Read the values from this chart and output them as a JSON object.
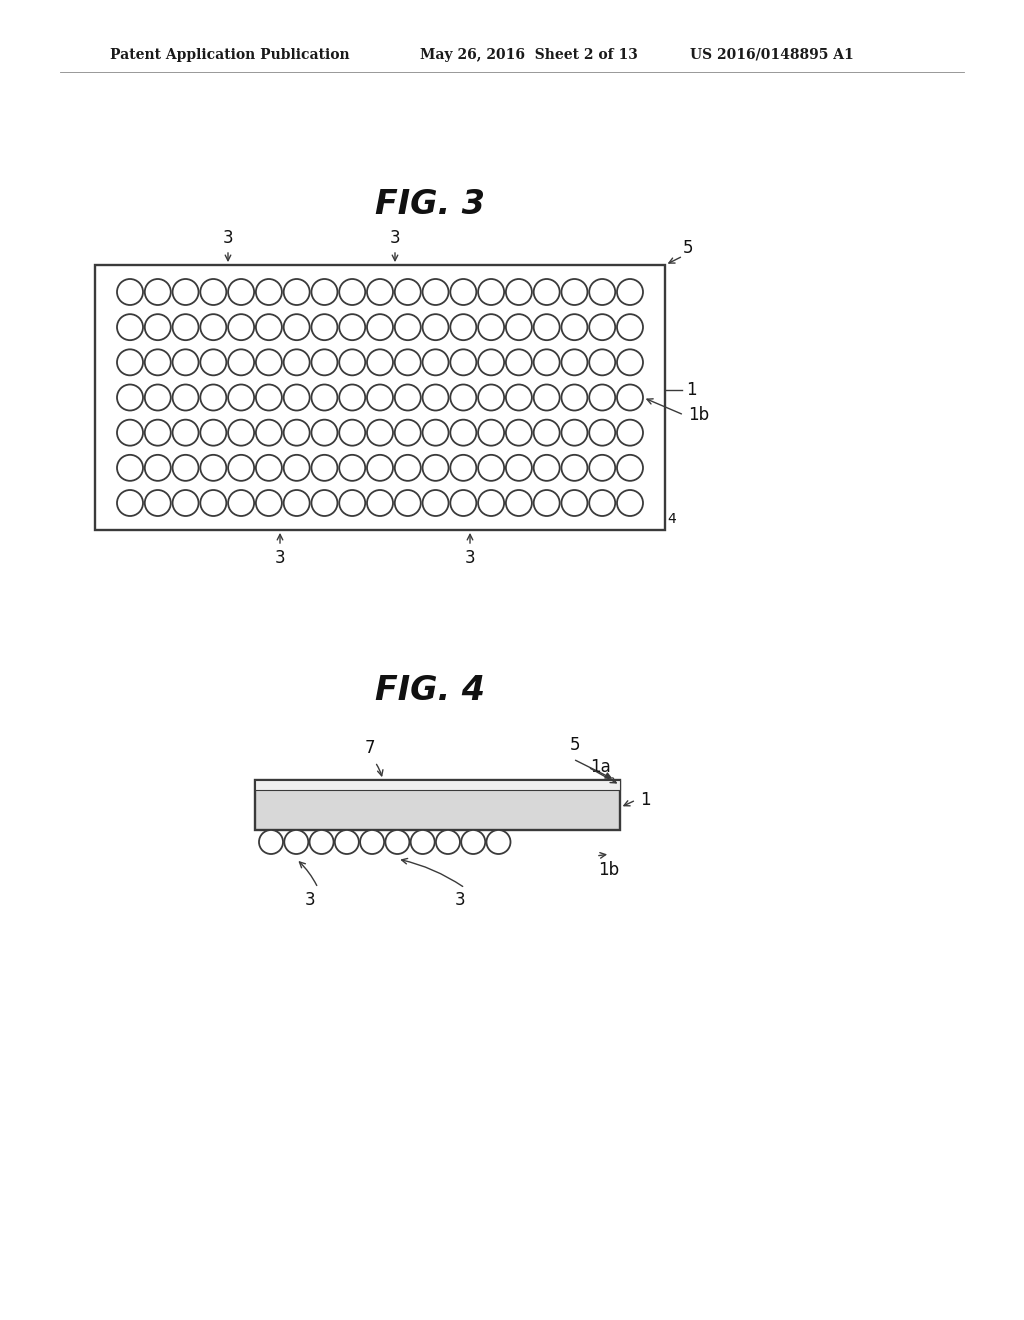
{
  "background_color": "#ffffff",
  "header_text_left": "Patent Application Publication",
  "header_text_mid": "May 26, 2016  Sheet 2 of 13",
  "header_text_right": "US 2016/0148895 A1",
  "fig3_title": "FIG. 3",
  "fig4_title": "FIG. 4",
  "line_color": "#3a3a3a",
  "line_width": 1.4,
  "circle_lw": 1.3,
  "fig3_rows": 7,
  "fig3_cols": 19,
  "fig3_circle_r": 13,
  "fig4_cols": 10,
  "fig4_circle_r": 12
}
